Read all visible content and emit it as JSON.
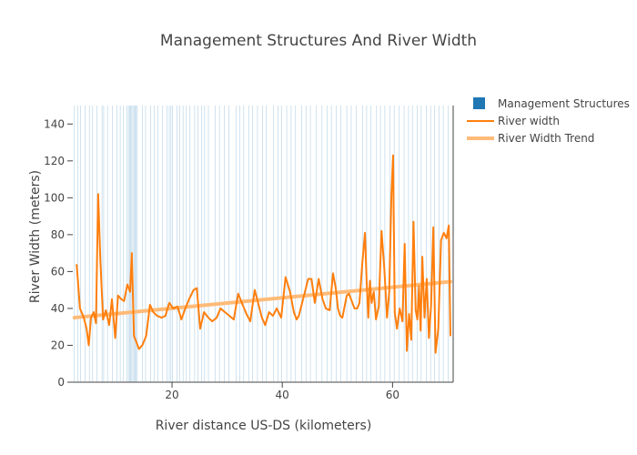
{
  "chart_data": {
    "type": "line",
    "title": "Management Structures And River Width",
    "xlabel": "River distance US-DS (kilometers)",
    "ylabel": "River Width (meters)",
    "xlim": [
      2,
      71
    ],
    "ylim": [
      0,
      150
    ],
    "x_ticks": [
      20,
      40,
      60
    ],
    "y_ticks": [
      0,
      20,
      40,
      60,
      80,
      100,
      120,
      140
    ],
    "grid": false,
    "legend_position": "top-right",
    "legend": [
      {
        "name": "Management Structures",
        "marker": "square",
        "color": "#1f77b4"
      },
      {
        "name": "River width",
        "marker": "line",
        "color": "#ff7f0e"
      },
      {
        "name": "River Width Trend",
        "marker": "thick-line",
        "color": "#ffbb78"
      }
    ],
    "management_structures": {
      "name": "Management Structures",
      "color": "#1f77b4",
      "x": [
        2.3,
        2.9,
        3.4,
        4.2,
        5.0,
        5.6,
        6.4,
        7.3,
        7.6,
        8.3,
        9.2,
        10.0,
        10.6,
        11.2,
        11.8,
        12.1,
        12.3,
        12.5,
        12.7,
        12.9,
        13.1,
        13.3,
        13.5,
        13.7,
        14.6,
        15.2,
        16.1,
        16.8,
        17.4,
        18.3,
        19.1,
        19.5,
        19.8,
        20.1,
        20.9,
        21.4,
        22.0,
        22.6,
        23.2,
        24.1,
        24.7,
        25.4,
        25.9,
        26.6,
        27.8,
        28.6,
        29.5,
        30.3,
        31.6,
        32.3,
        33.0,
        33.9,
        34.6,
        35.5,
        36.4,
        37.1,
        38.4,
        39.2,
        39.9,
        40.8,
        41.6,
        42.4,
        43.5,
        44.3,
        45.1,
        46.2,
        47.2,
        48.1,
        48.9,
        49.8,
        50.6,
        51.7,
        52.5,
        53.4,
        54.6,
        55.3,
        56.1,
        57.1,
        57.8,
        58.6,
        59.5,
        60.3,
        61.2,
        62.1,
        62.9,
        63.6,
        64.5,
        65.2,
        66.1,
        66.9,
        67.6,
        68.4,
        69.2,
        70.1
      ]
    },
    "series": [
      {
        "name": "River width",
        "color": "#ff7f0e",
        "x": [
          2.7,
          3.3,
          4.0,
          4.5,
          4.9,
          5.3,
          5.8,
          6.2,
          6.6,
          7.0,
          7.5,
          8.0,
          8.6,
          9.1,
          9.7,
          10.2,
          10.8,
          11.3,
          11.9,
          12.4,
          12.7,
          13.1,
          13.5,
          14.0,
          14.6,
          15.3,
          16.0,
          16.6,
          17.3,
          18.1,
          18.8,
          19.5,
          20.2,
          21.0,
          21.7,
          22.4,
          23.1,
          23.9,
          24.5,
          25.1,
          25.8,
          26.6,
          27.3,
          28.1,
          28.8,
          29.6,
          30.4,
          31.2,
          32.0,
          32.8,
          33.5,
          34.2,
          35.0,
          35.7,
          36.3,
          36.9,
          37.6,
          38.3,
          39.0,
          39.8,
          40.6,
          41.4,
          42.1,
          42.6,
          43.0,
          43.6,
          44.2,
          44.7,
          45.3,
          45.9,
          46.6,
          47.3,
          47.9,
          48.6,
          49.2,
          49.7,
          50.1,
          50.5,
          50.9,
          51.3,
          51.7,
          52.1,
          52.6,
          53.1,
          53.6,
          54.0,
          54.5,
          55.0,
          55.3,
          55.6,
          55.9,
          56.2,
          56.6,
          57.0,
          57.5,
          58.0,
          58.5,
          59.0,
          59.4,
          59.8,
          60.1,
          60.4,
          60.8,
          61.3,
          61.8,
          62.2,
          62.6,
          63.0,
          63.4,
          63.8,
          64.2,
          64.5,
          64.8,
          65.1,
          65.4,
          65.8,
          66.2,
          66.6,
          67.0,
          67.4,
          67.8,
          68.3,
          68.8,
          69.3,
          69.8,
          70.2,
          70.5
        ],
        "y": [
          64,
          40,
          35,
          29,
          20,
          35,
          38,
          32,
          102,
          66,
          34,
          39,
          31,
          45,
          24,
          47,
          45,
          44,
          53,
          49,
          70,
          25,
          22,
          18,
          20,
          25,
          42,
          38,
          36,
          35,
          36,
          43,
          40,
          41,
          34,
          40,
          45,
          50,
          51,
          29,
          38,
          35,
          33,
          35,
          40,
          38,
          36,
          34,
          48,
          42,
          37,
          33,
          50,
          42,
          35,
          31,
          38,
          36,
          40,
          35,
          57,
          49,
          38,
          34,
          36,
          43,
          50,
          56,
          56,
          43,
          56,
          45,
          40,
          39,
          59,
          51,
          40,
          36,
          35,
          41,
          47,
          48,
          44,
          40,
          40,
          43,
          64,
          81,
          55,
          35,
          55,
          43,
          49,
          34,
          41,
          82,
          62,
          35,
          49,
          102,
          123,
          38,
          29,
          40,
          33,
          75,
          17,
          37,
          23,
          87,
          39,
          34,
          52,
          28,
          68,
          35,
          56,
          24,
          42,
          84,
          16,
          29,
          77,
          81,
          78,
          85,
          25
        ],
        "_note_unused": ""
      },
      {
        "name": "River Width Trend",
        "color": "#ffbb78",
        "x": [
          2.3,
          70.5
        ],
        "y": [
          35,
          54.5
        ]
      }
    ]
  }
}
